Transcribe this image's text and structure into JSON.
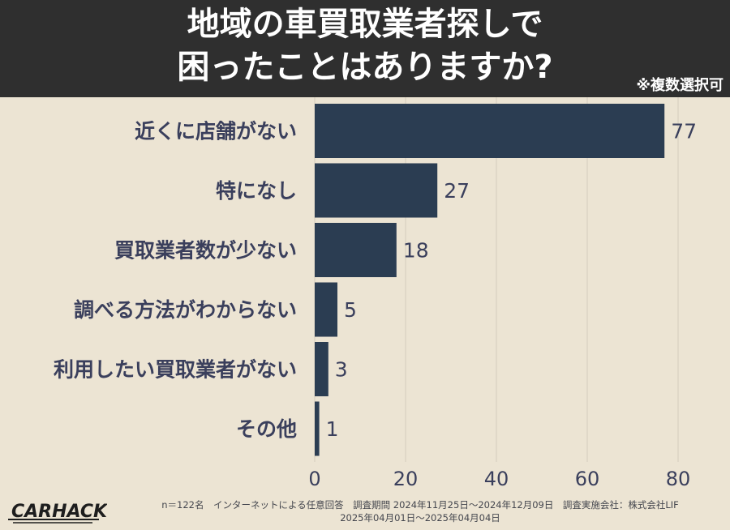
{
  "title_line1": "地域の車買取業者探しで",
  "title_line2": "困ったことはありますか?",
  "note": "※複数選択可",
  "colors": {
    "bar": "#2b3d52",
    "background": "#ece4d3",
    "header": "#2f2f2f",
    "text": "#3a3f5c",
    "grid": "#d4ccbc"
  },
  "chart_data": {
    "type": "bar",
    "orientation": "horizontal",
    "categories": [
      "近くに店舗がない",
      "特になし",
      "買取業者数が少ない",
      "調べる方法がわからない",
      "利用したい買取業者がない",
      "その他"
    ],
    "values": [
      77,
      27,
      18,
      5,
      3,
      1
    ],
    "xlim": [
      0,
      85
    ],
    "xticks": [
      "0",
      "20",
      "40",
      "60",
      "80"
    ],
    "grid": true
  },
  "footer": {
    "logo": "CARHACK",
    "line1": "n＝122名　インターネットによる任意回答　調査期間 2024年11月25日〜2024年12月09日　調査実施会社：株式会社LIF",
    "line2": "2025年04月01日〜2025年04月04日"
  }
}
